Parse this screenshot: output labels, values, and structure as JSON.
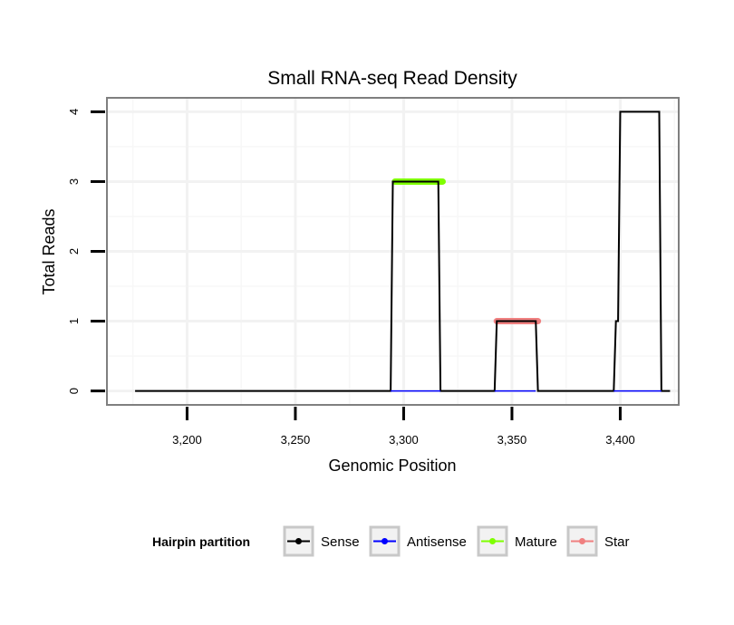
{
  "chart_data": {
    "type": "line",
    "title": "Small RNA-seq Read Density",
    "xlabel": "Genomic Position",
    "ylabel": "Total Reads",
    "xlim": [
      3163,
      3427
    ],
    "ylim": [
      -0.2,
      4.2
    ],
    "x_ticks": [
      3200,
      3250,
      3300,
      3350,
      3400
    ],
    "x_tick_labels": [
      "3,200",
      "3,250",
      "3,300",
      "3,350",
      "3,400"
    ],
    "y_ticks": [
      0,
      1,
      2,
      3,
      4
    ],
    "y_tick_labels": [
      "0",
      "1",
      "2",
      "3",
      "4"
    ],
    "grid": true,
    "legend": {
      "title": "Hairpin partition",
      "placement": "bottom",
      "entries": [
        "Sense",
        "Antisense",
        "Mature",
        "Star"
      ]
    },
    "series": [
      {
        "name": "Sense",
        "color": "#000000",
        "x": [
          3176,
          3294,
          3295,
          3316,
          3317,
          3342,
          3343,
          3361,
          3362,
          3397,
          3398,
          3399,
          3400,
          3418,
          3419,
          3423
        ],
        "y": [
          0,
          0,
          3,
          3,
          0,
          0,
          1,
          1,
          0,
          0,
          1,
          1,
          4,
          4,
          0,
          0
        ]
      },
      {
        "name": "Antisense",
        "color": "#0000ff",
        "x": [
          3294,
          3317,
          3342,
          3361,
          3397,
          3419
        ],
        "y": [
          0,
          0,
          0,
          0,
          0,
          0
        ],
        "segments": [
          [
            3294,
            3317
          ],
          [
            3342,
            3361
          ],
          [
            3397,
            3419
          ]
        ]
      },
      {
        "name": "Mature",
        "color": "#7fff00",
        "x": [
          3296,
          3318
        ],
        "y": [
          3,
          3
        ]
      },
      {
        "name": "Star",
        "color": "#f08080",
        "x": [
          3343,
          3362
        ],
        "y": [
          1,
          1
        ]
      }
    ]
  }
}
